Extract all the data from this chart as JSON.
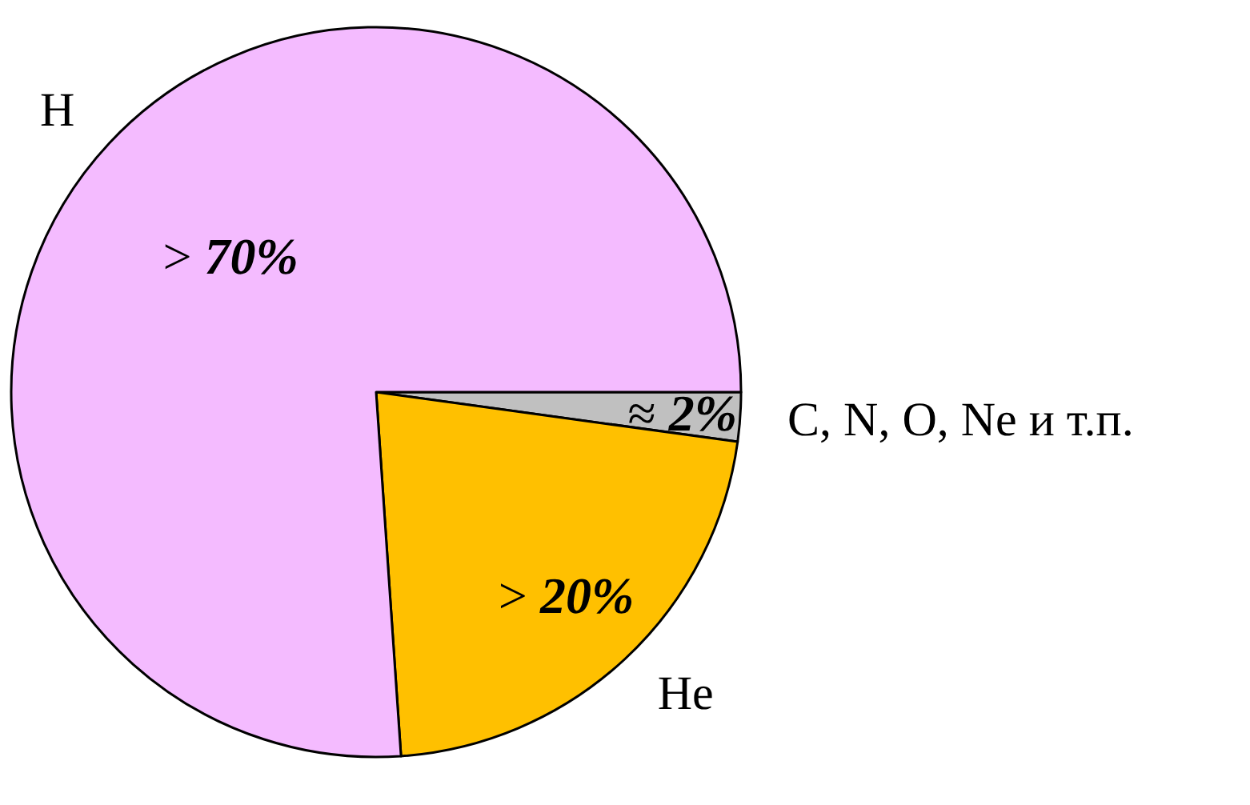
{
  "chart_data": {
    "type": "pie",
    "categories": [
      "C, N, O, Ne и т.п.",
      "He",
      "H"
    ],
    "values": [
      2,
      20,
      70
    ],
    "colors": [
      "#c0c0c0",
      "#ffc000",
      "#f4bbff"
    ],
    "value_labels": [
      "≈ 2%",
      "> 20%",
      "> 70%"
    ]
  }
}
